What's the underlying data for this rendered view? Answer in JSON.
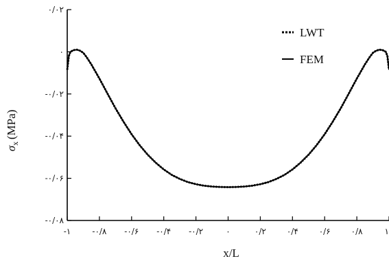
{
  "chart_data": {
    "type": "line",
    "title": "",
    "xlabel": "x/L",
    "ylabel_symbol": "σ",
    "ylabel_subscript": "x",
    "ylabel_unit": "(MPa)",
    "xlim": [
      -1,
      1
    ],
    "ylim": [
      -0.08,
      0.02
    ],
    "grid": false,
    "legend_position": "top-right",
    "x_ticks": [
      {
        "value": -1,
        "label": "-۱"
      },
      {
        "value": -0.8,
        "label": "-۰/۸"
      },
      {
        "value": -0.6,
        "label": "-۰/۶"
      },
      {
        "value": -0.4,
        "label": "-۰/۴"
      },
      {
        "value": -0.2,
        "label": "-۰/۲"
      },
      {
        "value": 0,
        "label": "۰"
      },
      {
        "value": 0.2,
        "label": "۰/۲"
      },
      {
        "value": 0.4,
        "label": "۰/۴"
      },
      {
        "value": 0.6,
        "label": "۰/۶"
      },
      {
        "value": 0.8,
        "label": "۰/۸"
      },
      {
        "value": 1,
        "label": "۱"
      }
    ],
    "y_ticks": [
      {
        "value": 0.02,
        "label": "۰/۰۲"
      },
      {
        "value": 0,
        "label": "۰"
      },
      {
        "value": -0.02,
        "label": "-۰/۰۲"
      },
      {
        "value": -0.04,
        "label": "-۰/۰۴"
      },
      {
        "value": -0.06,
        "label": "-۰/۰۶"
      },
      {
        "value": -0.08,
        "label": "-۰/۰۸"
      }
    ],
    "series": [
      {
        "name": "LWT",
        "style": "dotted",
        "color": "#000000",
        "x": [
          -1.0,
          -0.99,
          -0.98,
          -0.96,
          -0.94,
          -0.92,
          -0.9,
          -0.88,
          -0.85,
          -0.8,
          -0.75,
          -0.7,
          -0.65,
          -0.6,
          -0.55,
          -0.5,
          -0.45,
          -0.4,
          -0.35,
          -0.3,
          -0.25,
          -0.2,
          -0.15,
          -0.1,
          -0.05,
          0.0,
          0.05,
          0.1,
          0.15,
          0.2,
          0.25,
          0.3,
          0.35,
          0.4,
          0.45,
          0.5,
          0.55,
          0.6,
          0.65,
          0.7,
          0.75,
          0.8,
          0.85,
          0.88,
          0.9,
          0.92,
          0.94,
          0.96,
          0.98,
          0.99,
          1.0
        ],
        "y": [
          -0.0085,
          -0.002,
          0.0,
          0.0008,
          0.001,
          0.0005,
          -0.0005,
          -0.0025,
          -0.006,
          -0.0127,
          -0.0198,
          -0.0268,
          -0.0332,
          -0.0391,
          -0.0443,
          -0.0488,
          -0.0526,
          -0.0558,
          -0.0584,
          -0.0603,
          -0.0618,
          -0.0628,
          -0.0635,
          -0.0639,
          -0.0641,
          -0.0642,
          -0.0641,
          -0.0639,
          -0.0635,
          -0.0628,
          -0.0618,
          -0.0603,
          -0.0584,
          -0.0558,
          -0.0526,
          -0.0488,
          -0.0443,
          -0.0391,
          -0.0332,
          -0.0268,
          -0.0198,
          -0.0127,
          -0.006,
          -0.0025,
          -0.0005,
          0.0005,
          0.001,
          0.0008,
          0.0,
          -0.002,
          -0.0085
        ]
      },
      {
        "name": "FEM",
        "style": "solid",
        "color": "#000000",
        "x": [
          -1.0,
          -0.99,
          -0.98,
          -0.96,
          -0.94,
          -0.92,
          -0.9,
          -0.88,
          -0.85,
          -0.8,
          -0.75,
          -0.7,
          -0.65,
          -0.6,
          -0.55,
          -0.5,
          -0.45,
          -0.4,
          -0.35,
          -0.3,
          -0.25,
          -0.2,
          -0.15,
          -0.1,
          -0.05,
          0.0,
          0.05,
          0.1,
          0.15,
          0.2,
          0.25,
          0.3,
          0.35,
          0.4,
          0.45,
          0.5,
          0.55,
          0.6,
          0.65,
          0.7,
          0.75,
          0.8,
          0.85,
          0.88,
          0.9,
          0.92,
          0.94,
          0.96,
          0.98,
          0.99,
          1.0
        ],
        "y": [
          -0.0085,
          -0.002,
          0.0,
          0.0008,
          0.001,
          0.0005,
          -0.0005,
          -0.0025,
          -0.006,
          -0.0127,
          -0.0198,
          -0.0268,
          -0.0332,
          -0.0391,
          -0.0443,
          -0.0488,
          -0.0526,
          -0.0558,
          -0.0584,
          -0.0603,
          -0.0618,
          -0.0628,
          -0.0635,
          -0.0639,
          -0.0641,
          -0.0642,
          -0.0641,
          -0.0639,
          -0.0635,
          -0.0628,
          -0.0618,
          -0.0603,
          -0.0584,
          -0.0558,
          -0.0526,
          -0.0488,
          -0.0443,
          -0.0391,
          -0.0332,
          -0.0268,
          -0.0198,
          -0.0127,
          -0.006,
          -0.0025,
          -0.0005,
          0.0005,
          0.001,
          0.0008,
          0.0,
          -0.002,
          -0.0085
        ]
      }
    ]
  }
}
